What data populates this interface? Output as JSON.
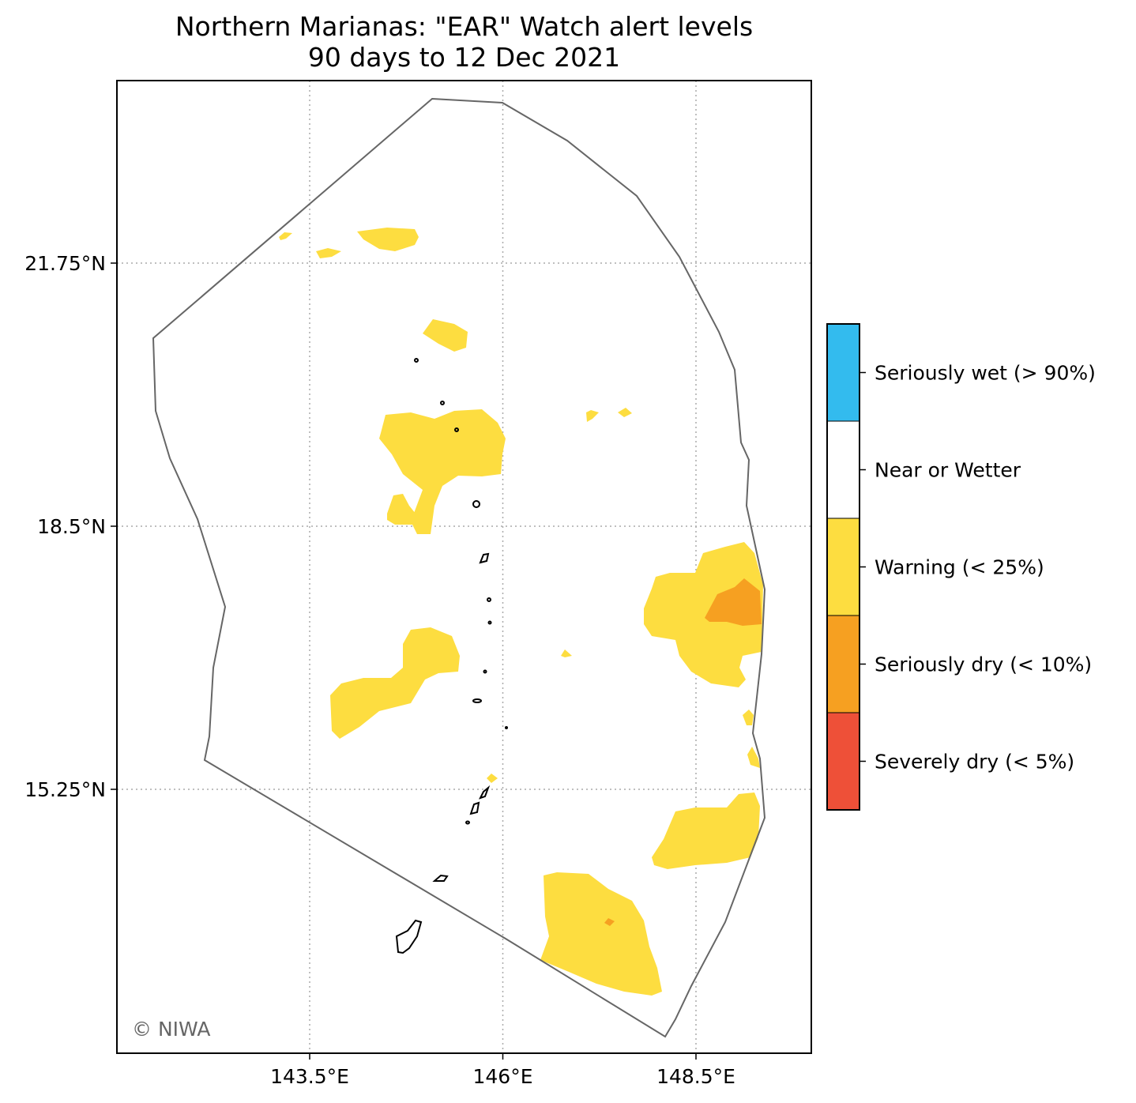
{
  "title": "Northern Marianas: \"EAR\" Watch alert levels",
  "subtitle": "90 days to 12 Dec 2021",
  "copyright": "© NIWA",
  "axes": {
    "x_ticks": [
      {
        "value": 143.5,
        "label": "143.5°E"
      },
      {
        "value": 146,
        "label": "146°E"
      },
      {
        "value": 148.5,
        "label": "148.5°E"
      }
    ],
    "y_ticks": [
      {
        "value": 21.75,
        "label": "21.75°N"
      },
      {
        "value": 18.5,
        "label": "18.5°N"
      },
      {
        "value": 15.25,
        "label": "15.25°N"
      }
    ],
    "grid": "dotted"
  },
  "legend": {
    "placement": "right",
    "categories": [
      {
        "label": "Seriously wet (> 90%)",
        "color": "#33bbee"
      },
      {
        "label": "Near or Wetter",
        "color": "#ffffff"
      },
      {
        "label": "Warning (< 25%)",
        "color": "#fddd40"
      },
      {
        "label": "Seriously dry (< 10%)",
        "color": "#f6a021"
      },
      {
        "label": "Severely dry (< 5%)",
        "color": "#ee5038"
      }
    ]
  },
  "colors": {
    "eez_outline": "#666666",
    "coastline": "#000000",
    "gridline": "#aaaaaa"
  }
}
